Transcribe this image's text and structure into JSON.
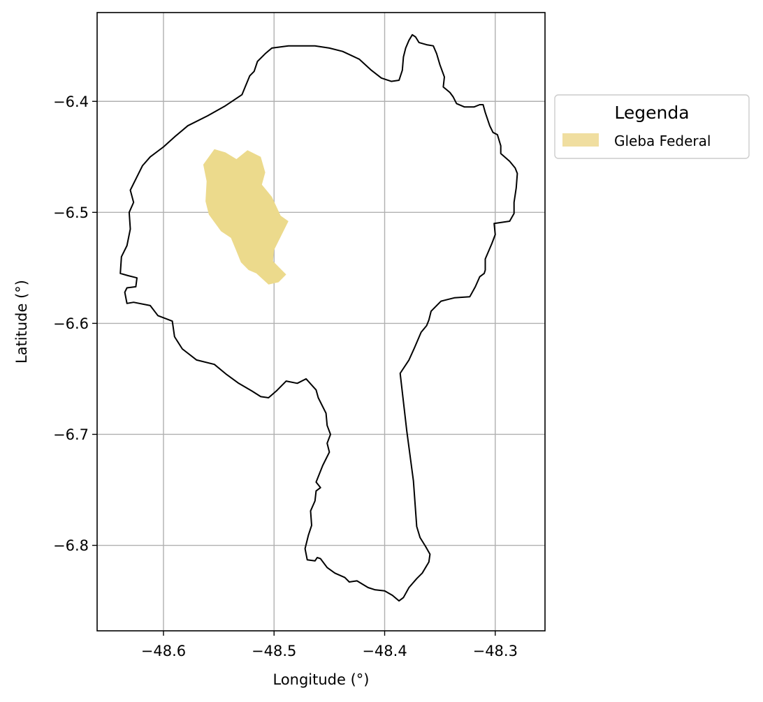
{
  "chart_data": {
    "type": "map",
    "xlabel": "Longitude (°)",
    "ylabel": "Latitude (°)",
    "xlim": [
      -48.66,
      -48.255
    ],
    "ylim": [
      -6.877,
      -6.32
    ],
    "x_ticks": [
      -48.6,
      -48.5,
      -48.4,
      -48.3
    ],
    "x_tick_labels": [
      "−48.6",
      "−48.5",
      "−48.4",
      "−48.3"
    ],
    "y_ticks": [
      -6.4,
      -6.5,
      -6.6,
      -6.7,
      -6.8
    ],
    "y_tick_labels": [
      "−6.4",
      "−6.5",
      "−6.6",
      "−6.7",
      "−6.8"
    ],
    "grid": true,
    "legend": {
      "title": "Legenda",
      "placement": "outside-right-top",
      "entries": [
        {
          "label": "Gleba Federal",
          "color": "#f0dea0"
        }
      ]
    },
    "layers": [
      {
        "name": "boundary",
        "fill": "none",
        "stroke": "#000000",
        "coordinates": [
          [
            -48.487,
            -6.35
          ],
          [
            -48.463,
            -6.35
          ],
          [
            -48.45,
            -6.352
          ],
          [
            -48.438,
            -6.355
          ],
          [
            -48.423,
            -6.362
          ],
          [
            -48.412,
            -6.372
          ],
          [
            -48.403,
            -6.379
          ],
          [
            -48.394,
            -6.382
          ],
          [
            -48.387,
            -6.381
          ],
          [
            -48.384,
            -6.372
          ],
          [
            -48.383,
            -6.36
          ],
          [
            -48.381,
            -6.352
          ],
          [
            -48.378,
            -6.345
          ],
          [
            -48.375,
            -6.34
          ],
          [
            -48.372,
            -6.342
          ],
          [
            -48.369,
            -6.347
          ],
          [
            -48.362,
            -6.349
          ],
          [
            -48.356,
            -6.35
          ],
          [
            -48.353,
            -6.357
          ],
          [
            -48.35,
            -6.367
          ],
          [
            -48.346,
            -6.378
          ],
          [
            -48.347,
            -6.387
          ],
          [
            -48.341,
            -6.392
          ],
          [
            -48.338,
            -6.396
          ],
          [
            -48.335,
            -6.402
          ],
          [
            -48.328,
            -6.405
          ],
          [
            -48.319,
            -6.405
          ],
          [
            -48.314,
            -6.403
          ],
          [
            -48.311,
            -6.403
          ],
          [
            -48.309,
            -6.41
          ],
          [
            -48.305,
            -6.422
          ],
          [
            -48.302,
            -6.428
          ],
          [
            -48.298,
            -6.43
          ],
          [
            -48.295,
            -6.44
          ],
          [
            -48.295,
            -6.447
          ],
          [
            -48.287,
            -6.454
          ],
          [
            -48.282,
            -6.46
          ],
          [
            -48.28,
            -6.465
          ],
          [
            -48.281,
            -6.478
          ],
          [
            -48.283,
            -6.491
          ],
          [
            -48.283,
            -6.501
          ],
          [
            -48.287,
            -6.508
          ],
          [
            -48.301,
            -6.51
          ],
          [
            -48.3,
            -6.52
          ],
          [
            -48.303,
            -6.528
          ],
          [
            -48.309,
            -6.542
          ],
          [
            -48.309,
            -6.552
          ],
          [
            -48.31,
            -6.555
          ],
          [
            -48.314,
            -6.558
          ],
          [
            -48.318,
            -6.567
          ],
          [
            -48.323,
            -6.576
          ],
          [
            -48.337,
            -6.577
          ],
          [
            -48.349,
            -6.58
          ],
          [
            -48.358,
            -6.589
          ],
          [
            -48.36,
            -6.597
          ],
          [
            -48.362,
            -6.602
          ],
          [
            -48.367,
            -6.608
          ],
          [
            -48.373,
            -6.622
          ],
          [
            -48.378,
            -6.633
          ],
          [
            -48.386,
            -6.645
          ],
          [
            -48.38,
            -6.697
          ],
          [
            -48.374,
            -6.742
          ],
          [
            -48.371,
            -6.783
          ],
          [
            -48.368,
            -6.793
          ],
          [
            -48.363,
            -6.801
          ],
          [
            -48.359,
            -6.808
          ],
          [
            -48.36,
            -6.815
          ],
          [
            -48.366,
            -6.825
          ],
          [
            -48.371,
            -6.83
          ],
          [
            -48.378,
            -6.838
          ],
          [
            -48.383,
            -6.847
          ],
          [
            -48.387,
            -6.85
          ],
          [
            -48.393,
            -6.845
          ],
          [
            -48.4,
            -6.841
          ],
          [
            -48.409,
            -6.84
          ],
          [
            -48.415,
            -6.838
          ],
          [
            -48.425,
            -6.832
          ],
          [
            -48.432,
            -6.833
          ],
          [
            -48.436,
            -6.829
          ],
          [
            -48.445,
            -6.825
          ],
          [
            -48.452,
            -6.82
          ],
          [
            -48.458,
            -6.812
          ],
          [
            -48.461,
            -6.811
          ],
          [
            -48.463,
            -6.814
          ],
          [
            -48.47,
            -6.813
          ],
          [
            -48.472,
            -6.803
          ],
          [
            -48.469,
            -6.791
          ],
          [
            -48.466,
            -6.782
          ],
          [
            -48.467,
            -6.769
          ],
          [
            -48.463,
            -6.76
          ],
          [
            -48.462,
            -6.751
          ],
          [
            -48.458,
            -6.748
          ],
          [
            -48.462,
            -6.743
          ],
          [
            -48.456,
            -6.728
          ],
          [
            -48.45,
            -6.716
          ],
          [
            -48.452,
            -6.708
          ],
          [
            -48.449,
            -6.7
          ],
          [
            -48.452,
            -6.692
          ],
          [
            -48.453,
            -6.681
          ],
          [
            -48.46,
            -6.667
          ],
          [
            -48.462,
            -6.66
          ],
          [
            -48.471,
            -6.65
          ],
          [
            -48.479,
            -6.654
          ],
          [
            -48.489,
            -6.652
          ],
          [
            -48.498,
            -6.661
          ],
          [
            -48.505,
            -6.667
          ],
          [
            -48.512,
            -6.666
          ],
          [
            -48.52,
            -6.661
          ],
          [
            -48.532,
            -6.654
          ],
          [
            -48.543,
            -6.646
          ],
          [
            -48.554,
            -6.637
          ],
          [
            -48.57,
            -6.633
          ],
          [
            -48.583,
            -6.623
          ],
          [
            -48.59,
            -6.612
          ],
          [
            -48.592,
            -6.598
          ],
          [
            -48.605,
            -6.593
          ],
          [
            -48.612,
            -6.584
          ],
          [
            -48.627,
            -6.581
          ],
          [
            -48.633,
            -6.582
          ],
          [
            -48.635,
            -6.572
          ],
          [
            -48.633,
            -6.568
          ],
          [
            -48.625,
            -6.567
          ],
          [
            -48.624,
            -6.559
          ],
          [
            -48.632,
            -6.557
          ],
          [
            -48.639,
            -6.555
          ],
          [
            -48.638,
            -6.54
          ],
          [
            -48.633,
            -6.53
          ],
          [
            -48.63,
            -6.515
          ],
          [
            -48.631,
            -6.5
          ],
          [
            -48.627,
            -6.491
          ],
          [
            -48.63,
            -6.48
          ],
          [
            -48.619,
            -6.458
          ],
          [
            -48.612,
            -6.45
          ],
          [
            -48.6,
            -6.441
          ],
          [
            -48.59,
            -6.432
          ],
          [
            -48.578,
            -6.422
          ],
          [
            -48.56,
            -6.413
          ],
          [
            -48.544,
            -6.404
          ],
          [
            -48.529,
            -6.394
          ],
          [
            -48.522,
            -6.377
          ],
          [
            -48.518,
            -6.373
          ],
          [
            -48.515,
            -6.364
          ],
          [
            -48.508,
            -6.357
          ],
          [
            -48.502,
            -6.352
          ],
          [
            -48.487,
            -6.35
          ]
        ]
      },
      {
        "name": "Gleba Federal",
        "fill": "#ecda8c",
        "stroke": "none",
        "coordinates": [
          [
            -48.564,
            -6.457
          ],
          [
            -48.554,
            -6.443
          ],
          [
            -48.544,
            -6.446
          ],
          [
            -48.534,
            -6.452
          ],
          [
            -48.524,
            -6.444
          ],
          [
            -48.512,
            -6.45
          ],
          [
            -48.508,
            -6.464
          ],
          [
            -48.511,
            -6.475
          ],
          [
            -48.502,
            -6.486
          ],
          [
            -48.494,
            -6.503
          ],
          [
            -48.487,
            -6.508
          ],
          [
            -48.5,
            -6.534
          ],
          [
            -48.501,
            -6.544
          ],
          [
            -48.489,
            -6.556
          ],
          [
            -48.496,
            -6.563
          ],
          [
            -48.505,
            -6.565
          ],
          [
            -48.516,
            -6.555
          ],
          [
            -48.523,
            -6.552
          ],
          [
            -48.53,
            -6.545
          ],
          [
            -48.534,
            -6.535
          ],
          [
            -48.539,
            -6.523
          ],
          [
            -48.548,
            -6.517
          ],
          [
            -48.559,
            -6.502
          ],
          [
            -48.562,
            -6.49
          ],
          [
            -48.561,
            -6.472
          ],
          [
            -48.564,
            -6.457
          ]
        ]
      }
    ]
  }
}
